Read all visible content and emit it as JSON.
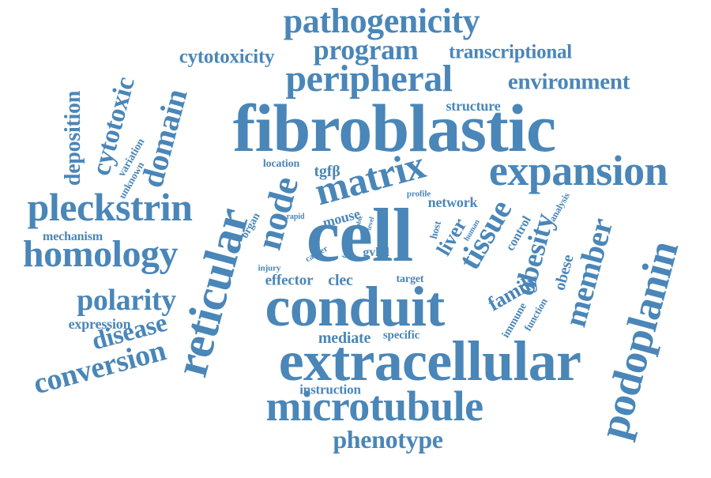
{
  "color": "#4a86b8",
  "words": [
    "pathogenicity",
    "cytotoxicity",
    "program",
    "transcriptional",
    "peripheral",
    "environment",
    "structure",
    "fibroblastic",
    "expansion",
    "matrix",
    "cell",
    "conduit",
    "extracellular",
    "microtubule",
    "phenotype",
    "instruction",
    "reticular",
    "podoplanin",
    "member",
    "obesity",
    "tissue",
    "liver",
    "node",
    "pleckstrin",
    "homology",
    "mechanism",
    "polarity",
    "expression",
    "disease",
    "conversion",
    "deposition",
    "cytotoxic",
    "domain",
    "variation",
    "unknown",
    "location",
    "tgfβ",
    "profile",
    "network",
    "mouse",
    "organ",
    "rapid",
    "cancer",
    "injury",
    "effector",
    "clec",
    "gvhd",
    "target",
    "host",
    "human",
    "control",
    "analysis",
    "family",
    "obese",
    "immune",
    "function",
    "mediate",
    "specific",
    "frc",
    "able",
    "level"
  ]
}
